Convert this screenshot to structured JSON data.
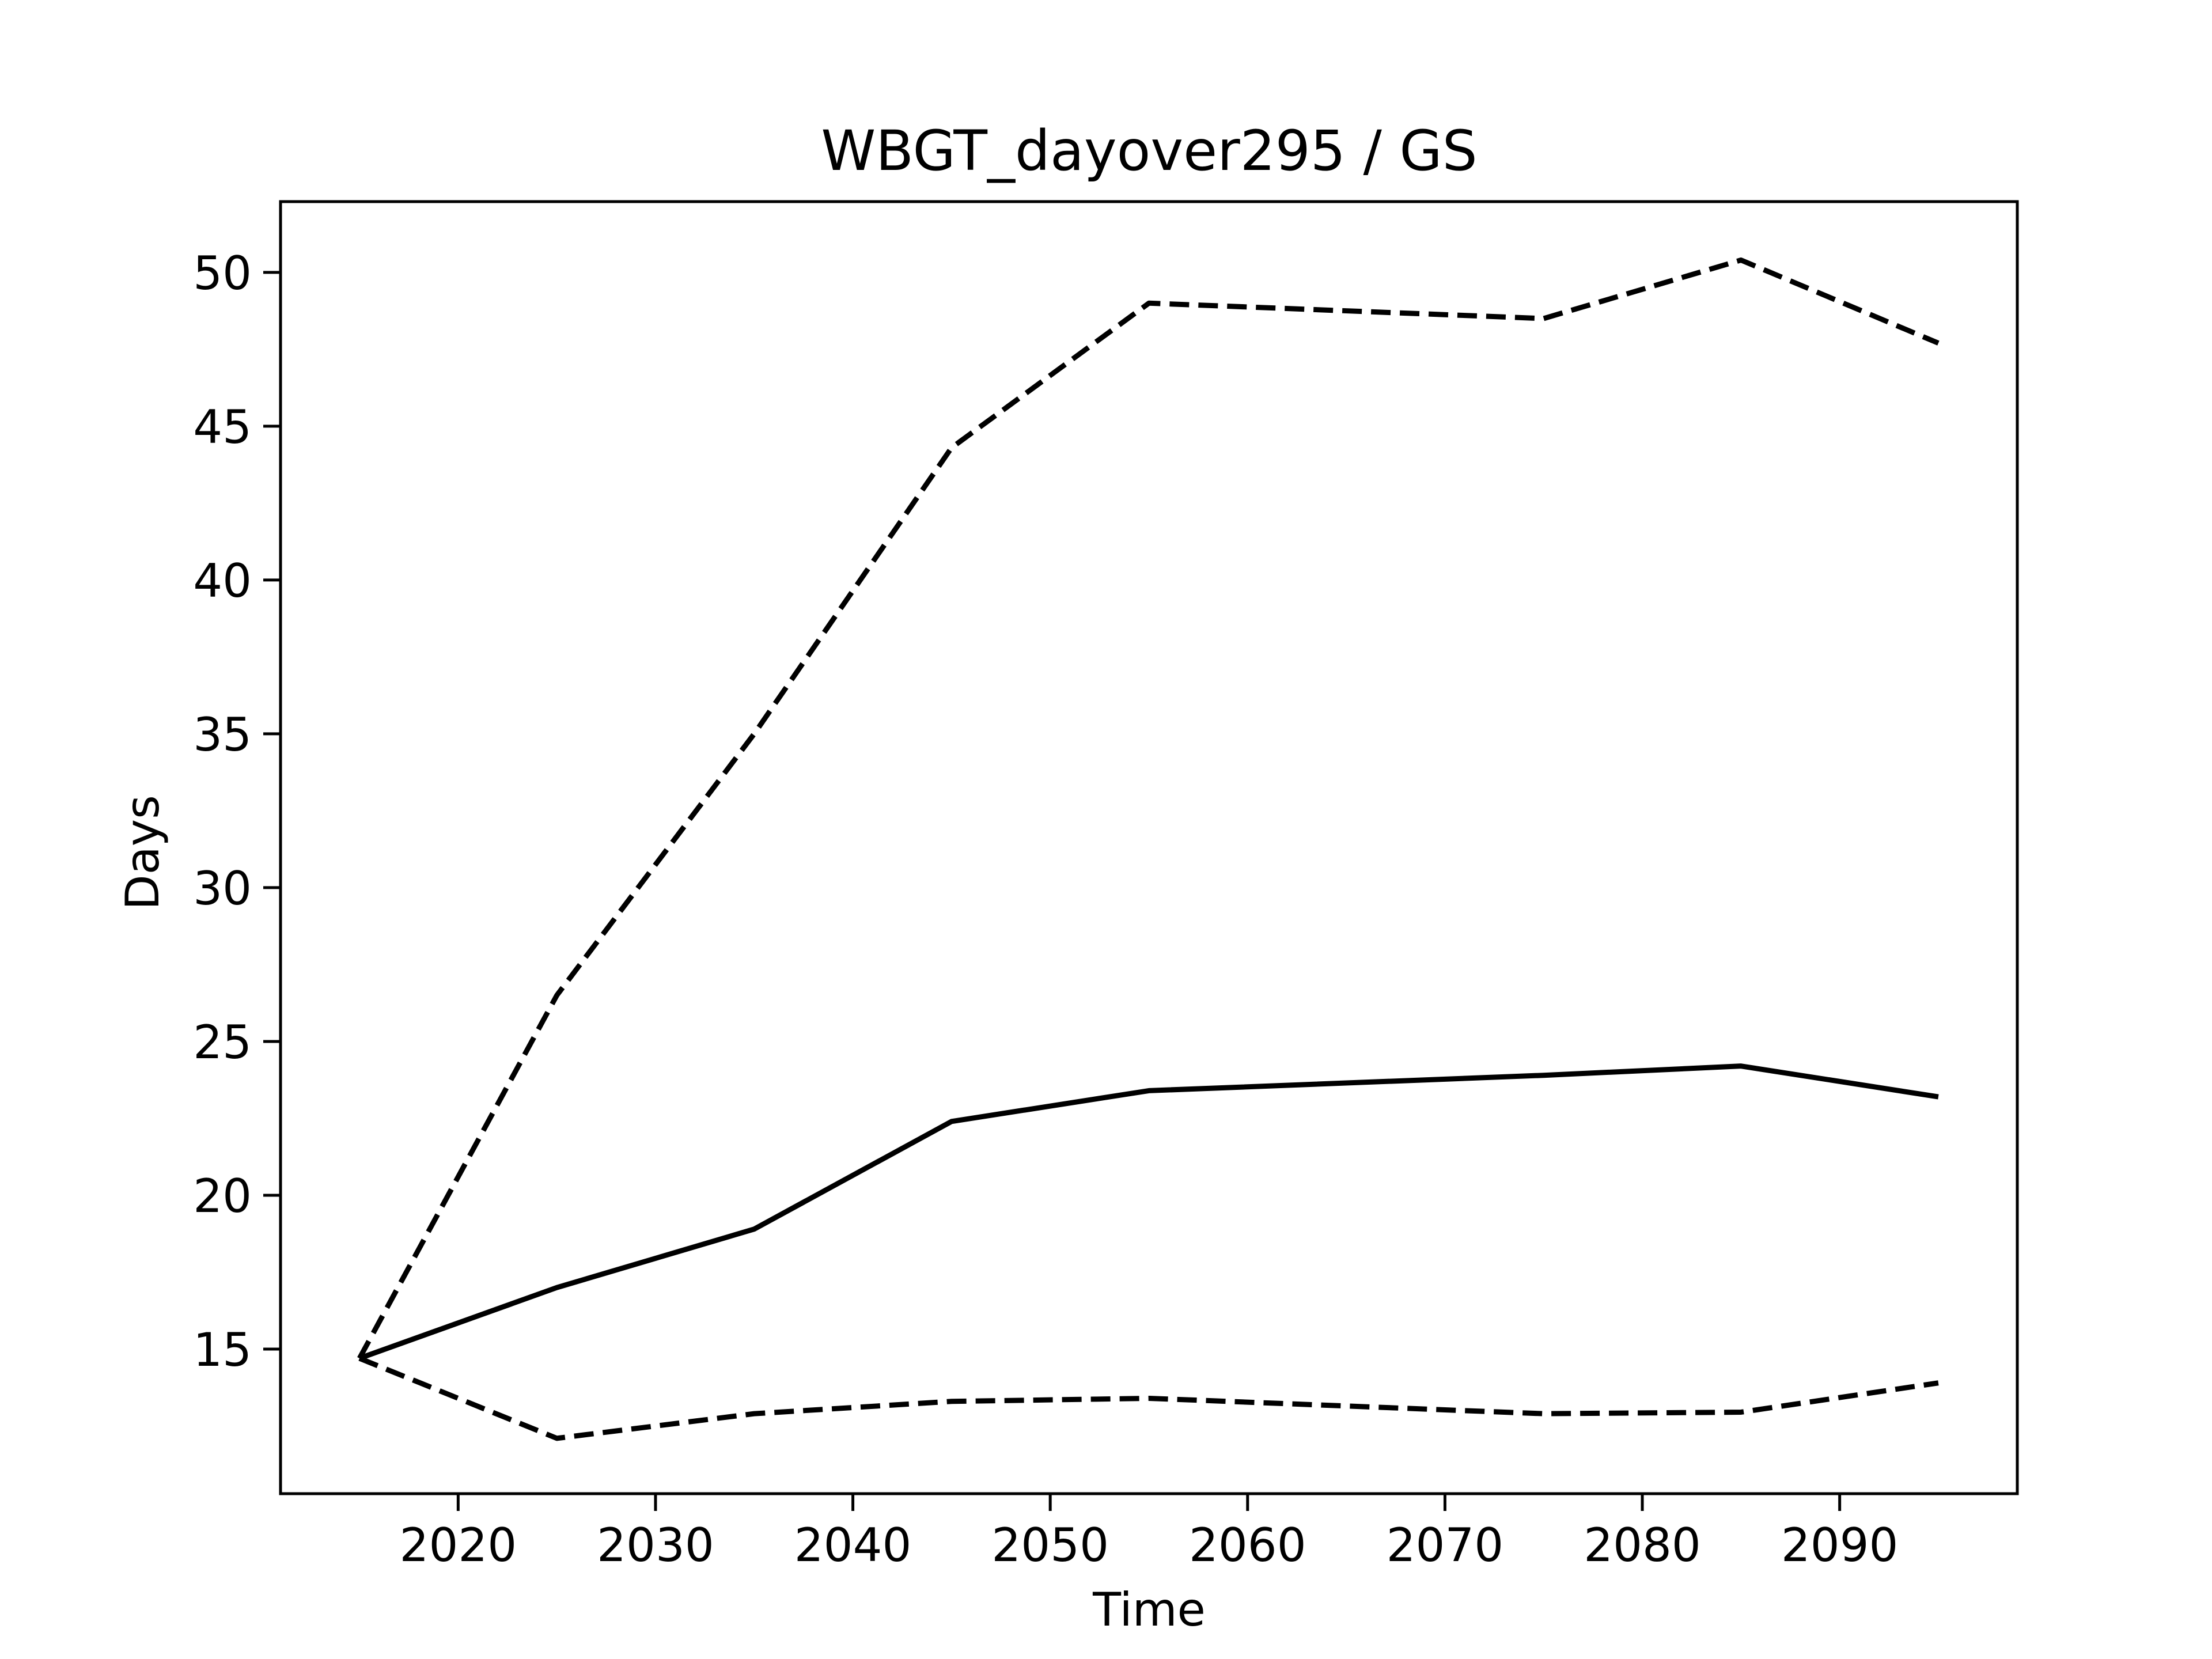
{
  "chart_data": {
    "type": "line",
    "title": "WBGT_dayover295 / GS",
    "xlabel": "Time",
    "ylabel": "Days",
    "x": [
      2015,
      2025,
      2035,
      2045,
      2055,
      2075,
      2085,
      2095
    ],
    "series": [
      {
        "style": "solid",
        "color": "#000000",
        "values": [
          14.7,
          17.0,
          18.9,
          22.4,
          23.4,
          23.9,
          24.2,
          23.2
        ]
      },
      {
        "style": "dashed",
        "color": "#000000",
        "values": [
          14.7,
          26.5,
          35.0,
          44.3,
          49.0,
          48.5,
          50.4,
          47.7
        ]
      },
      {
        "style": "dashed",
        "color": "#000000",
        "values": [
          14.7,
          12.1,
          12.9,
          13.3,
          13.4,
          12.9,
          12.95,
          13.9
        ]
      }
    ],
    "xlim": [
      2011,
      2099
    ],
    "ylim": [
      10.3,
      52.3
    ],
    "xticks": [
      "2020",
      "2030",
      "2040",
      "2050",
      "2060",
      "2070",
      "2080",
      "2090"
    ],
    "yticks": [
      "15",
      "20",
      "25",
      "30",
      "35",
      "40",
      "45",
      "50"
    ],
    "grid": false,
    "legend": "none"
  }
}
